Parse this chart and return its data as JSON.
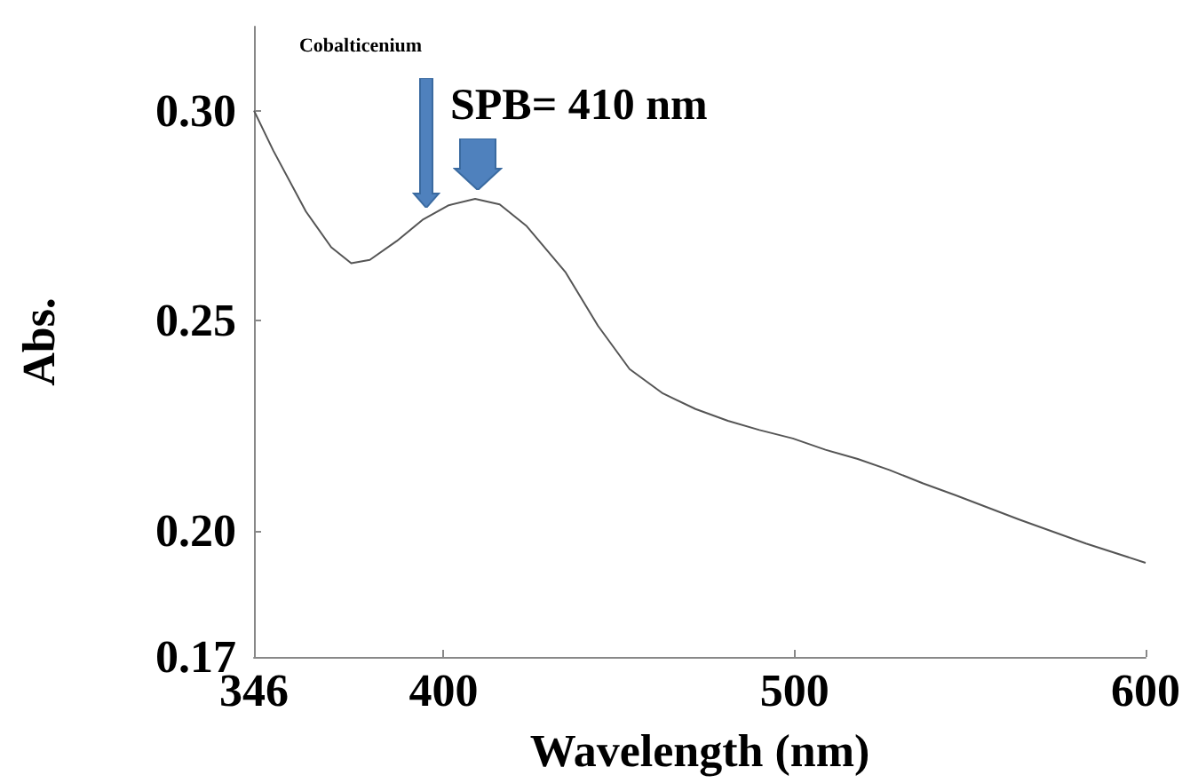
{
  "chart_data": {
    "type": "line",
    "xlabel": "Wavelength (nm)",
    "ylabel": "Abs.",
    "x": [
      346,
      351.5,
      360.8,
      368,
      373.7,
      379,
      386.7,
      394,
      401.5,
      409,
      416,
      423.7,
      434.8,
      444,
      453,
      462.5,
      471.8,
      481,
      490,
      499.5,
      508.8,
      518,
      527,
      536.6,
      545.8,
      564,
      583,
      600
    ],
    "values": [
      0.3,
      0.2905,
      0.276,
      0.2675,
      0.2637,
      0.2645,
      0.269,
      0.274,
      0.2775,
      0.279,
      0.2777,
      0.2725,
      0.2615,
      0.2488,
      0.2385,
      0.2327,
      0.229,
      0.2262,
      0.224,
      0.222,
      0.2193,
      0.2171,
      0.2145,
      0.2113,
      0.2085,
      0.2027,
      0.197,
      0.1924
    ],
    "color": "#555555",
    "marker": "none",
    "line_style": "solid",
    "grid": false,
    "xlim": [
      346,
      600
    ],
    "xticks": [
      346,
      400,
      500,
      600
    ],
    "ylim": [
      0.17,
      0.32
    ],
    "yticks": [
      {
        "value": 0.17,
        "label": "0.17"
      },
      {
        "value": 0.2,
        "label": "0.20"
      },
      {
        "value": 0.25,
        "label": "0.25"
      },
      {
        "value": 0.3,
        "label": "0.30"
      }
    ],
    "annotations": [
      "Cobalticenium",
      {
        "text": "SPB= 410 nm",
        "x": 410,
        "y": 0.279
      }
    ]
  }
}
